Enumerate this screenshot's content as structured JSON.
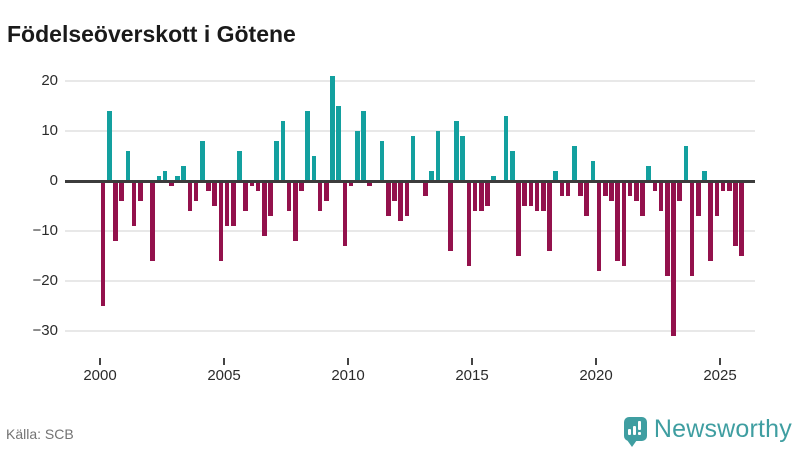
{
  "title": "Födelseöverskott i Götene",
  "source": "Källa: SCB",
  "branding": {
    "name": "Newsworthy",
    "logo": "newsworthy-pin-barchart-icon"
  },
  "colors": {
    "positive_bar": "#13a09f",
    "negative_bar": "#93114c",
    "gridline": "#e8e8e8",
    "zero_line": "#3c3c3c",
    "axis_text": "#2b2b2b",
    "source_text": "#737373",
    "brand_teal": "#3f9ea1"
  },
  "chart_data": {
    "type": "bar",
    "title": "Födelseöverskott i Götene",
    "xlabel": "",
    "ylabel": "",
    "frequency": "quarterly",
    "start_year": 2000,
    "start_quarter": 1,
    "ylim": [
      -35,
      24
    ],
    "yticks": [
      20,
      10,
      0,
      -10,
      -20,
      -30
    ],
    "xticks": [
      2000,
      2005,
      2010,
      2015,
      2020,
      2025
    ],
    "grid": true,
    "legend": false,
    "values": [
      -25,
      14,
      -12,
      -4,
      6,
      -9,
      -4,
      0,
      -16,
      1,
      2,
      -1,
      1,
      3,
      -6,
      -4,
      8,
      -2,
      -5,
      -16,
      -9,
      -9,
      6,
      -6,
      -1,
      -2,
      -11,
      -7,
      8,
      12,
      -6,
      -12,
      -2,
      14,
      5,
      -6,
      -4,
      21,
      15,
      -13,
      -1,
      10,
      14,
      -1,
      0,
      8,
      -7,
      -4,
      -8,
      -7,
      9,
      0,
      -3,
      2,
      10,
      0,
      -14,
      12,
      9,
      -17,
      -6,
      -6,
      -5,
      1,
      0,
      13,
      6,
      -15,
      -5,
      -5,
      -6,
      -6,
      -14,
      2,
      -3,
      -3,
      7,
      -3,
      -7,
      4,
      -18,
      -3,
      -4,
      -16,
      -17,
      -3,
      -4,
      -7,
      3,
      -2,
      -6,
      -19,
      -31,
      -4,
      7,
      -19,
      -7,
      2,
      -16,
      -7,
      -2,
      -2,
      -13,
      -15
    ]
  }
}
